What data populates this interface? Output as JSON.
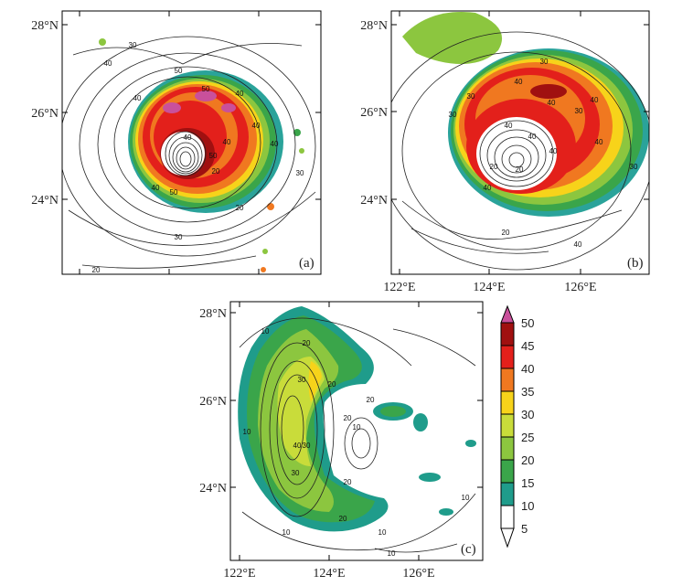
{
  "panels": [
    {
      "label": "(a)",
      "lat_ticks": [
        "28°N",
        "26°N",
        "24°N"
      ],
      "lon_ticks": [],
      "contour_labels": [
        "30",
        "40",
        "50",
        "40",
        "50",
        "40",
        "40",
        "30",
        "20",
        "30",
        "20",
        "20",
        "40",
        "50",
        "40",
        "50",
        "40",
        "40"
      ]
    },
    {
      "label": "(b)",
      "lat_ticks": [
        "28°N",
        "26°N",
        "24°N"
      ],
      "lon_ticks": [
        "122°E",
        "124°E",
        "126°E"
      ],
      "contour_labels": [
        "30",
        "40",
        "40",
        "40",
        "30",
        "40",
        "20",
        "40",
        "40",
        "30",
        "30",
        "20",
        "40",
        "40",
        "40",
        "20",
        "30"
      ]
    },
    {
      "label": "(c)",
      "lat_ticks": [
        "28°N",
        "26°N",
        "24°N"
      ],
      "lon_ticks": [
        "122°E",
        "124°E",
        "126°E"
      ],
      "contour_labels": [
        "10",
        "20",
        "30",
        "20",
        "20",
        "10",
        "20",
        "30",
        "40",
        "30",
        "20",
        "10",
        "20",
        "10",
        "10",
        "10",
        "10"
      ]
    }
  ],
  "colorbar": {
    "levels": [
      "50",
      "45",
      "40",
      "35",
      "30",
      "25",
      "20",
      "15",
      "10",
      "5"
    ],
    "colors": [
      "#c9509b",
      "#a01010",
      "#e3201b",
      "#f07820",
      "#f7d31a",
      "#c9dc3a",
      "#8cc63f",
      "#3aa54a",
      "#1f9c8b",
      "#ffffff"
    ]
  }
}
